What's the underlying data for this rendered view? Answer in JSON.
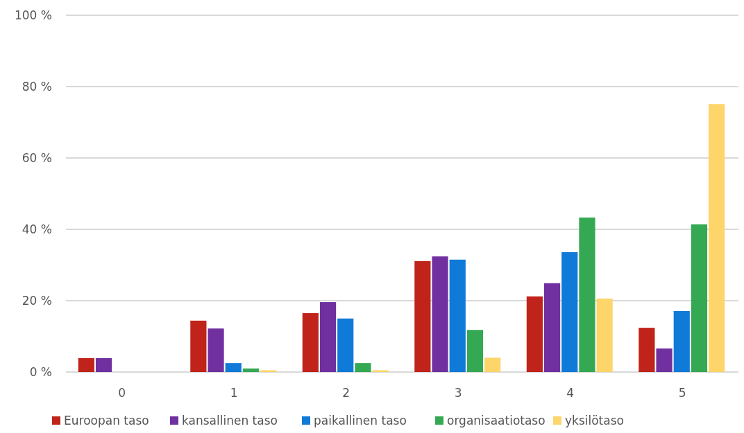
{
  "chart_data": {
    "type": "bar",
    "categories": [
      "0",
      "1",
      "2",
      "3",
      "4",
      "5"
    ],
    "series": [
      {
        "name": "Euroopan taso",
        "color": "#c0231a",
        "values": [
          3.9,
          14.4,
          16.5,
          31.1,
          21.2,
          12.4
        ]
      },
      {
        "name": "kansallinen taso",
        "color": "#7030a0",
        "values": [
          3.9,
          12.2,
          19.6,
          32.4,
          24.9,
          6.6
        ]
      },
      {
        "name": "paikallinen taso",
        "color": "#0f7ad8",
        "values": [
          0,
          2.5,
          15,
          31.5,
          33.6,
          17.1
        ]
      },
      {
        "name": "organisaatiotaso",
        "color": "#34a853",
        "values": [
          0,
          1,
          2.5,
          11.8,
          43.3,
          41.4
        ]
      },
      {
        "name": "yksilötaso",
        "color": "#fdd56a",
        "values": [
          0,
          0.5,
          0.5,
          4,
          20.6,
          75.1
        ]
      }
    ],
    "ylim": [
      0,
      100
    ],
    "yticks": [
      {
        "value": 0,
        "label": "0 %"
      },
      {
        "value": 20,
        "label": "20 %"
      },
      {
        "value": 40,
        "label": "40 %"
      },
      {
        "value": 60,
        "label": "60 %"
      },
      {
        "value": 80,
        "label": "80 %"
      },
      {
        "value": 100,
        "label": "100 %"
      }
    ],
    "grid": "y",
    "legend": "bottom"
  }
}
